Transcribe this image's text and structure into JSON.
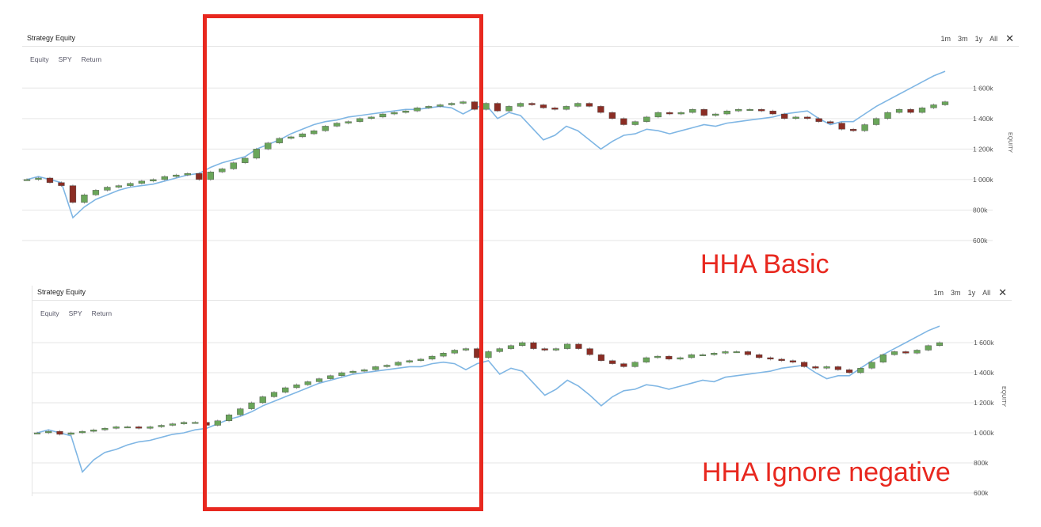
{
  "panels": [
    {
      "title": "Strategy Equity",
      "range_buttons": [
        "1m",
        "3m",
        "1y",
        "All"
      ],
      "series_toggles": [
        "Equity",
        "SPY",
        "Return"
      ],
      "y_axis_label": "EQUITY",
      "annotation": "HHA Basic"
    },
    {
      "title": "Strategy Equity",
      "range_buttons": [
        "1m",
        "3m",
        "1y",
        "All"
      ],
      "series_toggles": [
        "Equity",
        "SPY",
        "Return"
      ],
      "y_axis_label": "EQUITY",
      "annotation": "HHA Ignore negative"
    }
  ],
  "colors": {
    "bull_candle": "#6aa65a",
    "bear_candle": "#8b2d24",
    "benchmark_line": "#7fb6e4",
    "gridline": "#e6e6e6",
    "highlight": "#e8281f"
  },
  "chart_data": [
    {
      "type": "line",
      "title": "Strategy Equity",
      "ylabel": "EQUITY",
      "ylim": [
        600000,
        1700000
      ],
      "y_ticks": [
        600000,
        800000,
        1000000,
        1200000,
        1400000,
        1600000
      ],
      "y_tick_labels": [
        "600k",
        "800k",
        "1 000k",
        "1 200k",
        "1 400k",
        "1 600k"
      ],
      "x": [
        0,
        1,
        2,
        3,
        4,
        5,
        6,
        7,
        8,
        9,
        10,
        11,
        12,
        13,
        14,
        15,
        16,
        17,
        18,
        19,
        20,
        21,
        22,
        23,
        24,
        25,
        26,
        27,
        28,
        29,
        30,
        31,
        32,
        33,
        34,
        35,
        36,
        37,
        38,
        39,
        40,
        41,
        42,
        43,
        44,
        45,
        46,
        47,
        48,
        49,
        50,
        51,
        52,
        53,
        54,
        55,
        56,
        57,
        58,
        59,
        60,
        61,
        62,
        63,
        64,
        65,
        66,
        67,
        68,
        69,
        70,
        71,
        72,
        73,
        74,
        75,
        76,
        77,
        78,
        79,
        80
      ],
      "grid": true,
      "series": [
        {
          "name": "Equity",
          "style": "candlestick",
          "values": [
            1000000,
            1010000,
            980000,
            960000,
            850000,
            900000,
            930000,
            950000,
            960000,
            975000,
            990000,
            1000000,
            1020000,
            1030000,
            1040000,
            1000000,
            1050000,
            1070000,
            1110000,
            1140000,
            1200000,
            1240000,
            1270000,
            1280000,
            1300000,
            1320000,
            1350000,
            1370000,
            1380000,
            1400000,
            1410000,
            1430000,
            1440000,
            1450000,
            1470000,
            1480000,
            1490000,
            1500000,
            1510000,
            1460000,
            1500000,
            1450000,
            1480000,
            1500000,
            1490000,
            1470000,
            1460000,
            1480000,
            1500000,
            1480000,
            1440000,
            1400000,
            1360000,
            1380000,
            1410000,
            1440000,
            1430000,
            1440000,
            1460000,
            1420000,
            1430000,
            1450000,
            1460000,
            1460000,
            1450000,
            1430000,
            1400000,
            1410000,
            1400000,
            1380000,
            1370000,
            1330000,
            1320000,
            1360000,
            1400000,
            1440000,
            1460000,
            1440000,
            1470000,
            1490000,
            1510000
          ]
        },
        {
          "name": "SPY",
          "style": "line",
          "values": [
            1000000,
            1020000,
            1000000,
            980000,
            750000,
            820000,
            870000,
            900000,
            930000,
            950000,
            960000,
            970000,
            990000,
            1010000,
            1030000,
            1040000,
            1080000,
            1110000,
            1130000,
            1150000,
            1200000,
            1230000,
            1260000,
            1300000,
            1330000,
            1360000,
            1380000,
            1390000,
            1410000,
            1420000,
            1430000,
            1440000,
            1450000,
            1460000,
            1460000,
            1470000,
            1480000,
            1470000,
            1430000,
            1470000,
            1490000,
            1400000,
            1440000,
            1420000,
            1340000,
            1260000,
            1290000,
            1350000,
            1320000,
            1260000,
            1200000,
            1250000,
            1290000,
            1300000,
            1330000,
            1320000,
            1300000,
            1320000,
            1340000,
            1360000,
            1350000,
            1370000,
            1380000,
            1390000,
            1400000,
            1410000,
            1430000,
            1440000,
            1450000,
            1400000,
            1360000,
            1380000,
            1380000,
            1430000,
            1480000,
            1520000,
            1560000,
            1600000,
            1640000,
            1680000,
            1710000
          ]
        }
      ]
    },
    {
      "type": "line",
      "title": "Strategy Equity",
      "ylabel": "EQUITY",
      "ylim": [
        600000,
        1700000
      ],
      "y_ticks": [
        600000,
        800000,
        1000000,
        1200000,
        1400000,
        1600000
      ],
      "y_tick_labels": [
        "600k",
        "800k",
        "1 000k",
        "1 200k",
        "1 400k",
        "1 600k"
      ],
      "x": [
        0,
        1,
        2,
        3,
        4,
        5,
        6,
        7,
        8,
        9,
        10,
        11,
        12,
        13,
        14,
        15,
        16,
        17,
        18,
        19,
        20,
        21,
        22,
        23,
        24,
        25,
        26,
        27,
        28,
        29,
        30,
        31,
        32,
        33,
        34,
        35,
        36,
        37,
        38,
        39,
        40,
        41,
        42,
        43,
        44,
        45,
        46,
        47,
        48,
        49,
        50,
        51,
        52,
        53,
        54,
        55,
        56,
        57,
        58,
        59,
        60,
        61,
        62,
        63,
        64,
        65,
        66,
        67,
        68,
        69,
        70,
        71,
        72,
        73,
        74,
        75,
        76,
        77,
        78,
        79,
        80
      ],
      "grid": true,
      "series": [
        {
          "name": "Equity",
          "style": "candlestick",
          "values": [
            1000000,
            1010000,
            990000,
            1000000,
            1010000,
            1020000,
            1030000,
            1040000,
            1040000,
            1030000,
            1040000,
            1050000,
            1060000,
            1070000,
            1070000,
            1050000,
            1080000,
            1120000,
            1160000,
            1200000,
            1240000,
            1270000,
            1300000,
            1320000,
            1340000,
            1360000,
            1380000,
            1400000,
            1410000,
            1420000,
            1440000,
            1450000,
            1470000,
            1480000,
            1490000,
            1510000,
            1530000,
            1550000,
            1560000,
            1500000,
            1540000,
            1560000,
            1580000,
            1600000,
            1560000,
            1550000,
            1560000,
            1590000,
            1560000,
            1520000,
            1480000,
            1460000,
            1440000,
            1470000,
            1500000,
            1510000,
            1490000,
            1500000,
            1520000,
            1520000,
            1530000,
            1540000,
            1540000,
            1520000,
            1500000,
            1490000,
            1480000,
            1470000,
            1440000,
            1430000,
            1440000,
            1420000,
            1400000,
            1430000,
            1470000,
            1520000,
            1540000,
            1530000,
            1550000,
            1580000,
            1600000
          ]
        },
        {
          "name": "SPY",
          "style": "line",
          "values": [
            1000000,
            1020000,
            1000000,
            980000,
            740000,
            820000,
            870000,
            890000,
            920000,
            940000,
            950000,
            970000,
            990000,
            1000000,
            1020000,
            1030000,
            1060000,
            1090000,
            1110000,
            1140000,
            1180000,
            1210000,
            1240000,
            1270000,
            1300000,
            1330000,
            1350000,
            1370000,
            1390000,
            1400000,
            1410000,
            1420000,
            1430000,
            1440000,
            1440000,
            1460000,
            1470000,
            1460000,
            1420000,
            1460000,
            1480000,
            1390000,
            1430000,
            1410000,
            1330000,
            1250000,
            1290000,
            1350000,
            1310000,
            1250000,
            1180000,
            1240000,
            1280000,
            1290000,
            1320000,
            1310000,
            1290000,
            1310000,
            1330000,
            1350000,
            1340000,
            1370000,
            1380000,
            1390000,
            1400000,
            1410000,
            1430000,
            1440000,
            1450000,
            1400000,
            1360000,
            1380000,
            1380000,
            1430000,
            1480000,
            1520000,
            1560000,
            1600000,
            1640000,
            1680000,
            1710000
          ]
        }
      ]
    }
  ]
}
